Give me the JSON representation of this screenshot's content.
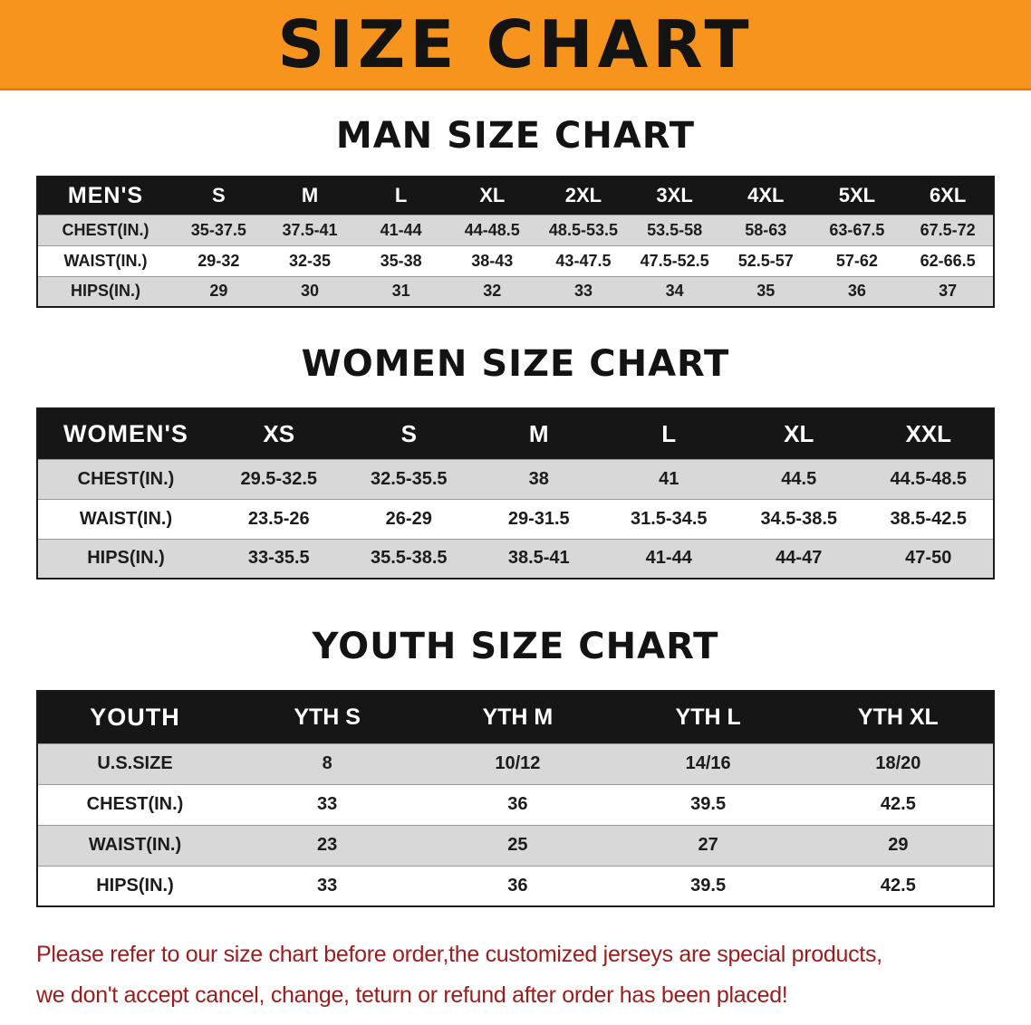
{
  "banner": {
    "title": "SIZE CHART"
  },
  "sections": [
    {
      "id": "men",
      "heading": "MAN SIZE CHART",
      "table": {
        "header": [
          "MEN'S",
          "S",
          "M",
          "L",
          "XL",
          "2XL",
          "3XL",
          "4XL",
          "5XL",
          "6XL"
        ],
        "rows": [
          [
            "CHEST(IN.)",
            "35-37.5",
            "37.5-41",
            "41-44",
            "44-48.5",
            "48.5-53.5",
            "53.5-58",
            "58-63",
            "63-67.5",
            "67.5-72"
          ],
          [
            "WAIST(IN.)",
            "29-32",
            "32-35",
            "35-38",
            "38-43",
            "43-47.5",
            "47.5-52.5",
            "52.5-57",
            "57-62",
            "62-66.5"
          ],
          [
            "HIPS(IN.)",
            "29",
            "30",
            "31",
            "32",
            "33",
            "34",
            "35",
            "36",
            "37"
          ]
        ]
      }
    },
    {
      "id": "women",
      "heading": "WOMEN SIZE CHART",
      "table": {
        "header": [
          "WOMEN'S",
          "XS",
          "S",
          "M",
          "L",
          "XL",
          "XXL"
        ],
        "rows": [
          [
            "CHEST(IN.)",
            "29.5-32.5",
            "32.5-35.5",
            "38",
            "41",
            "44.5",
            "44.5-48.5"
          ],
          [
            "WAIST(IN.)",
            "23.5-26",
            "26-29",
            "29-31.5",
            "31.5-34.5",
            "34.5-38.5",
            "38.5-42.5"
          ],
          [
            "HIPS(IN.)",
            "33-35.5",
            "35.5-38.5",
            "38.5-41",
            "41-44",
            "44-47",
            "47-50"
          ]
        ]
      }
    },
    {
      "id": "youth",
      "heading": "YOUTH SIZE CHART",
      "table": {
        "header": [
          "YOUTH",
          "YTH S",
          "YTH M",
          "YTH L",
          "YTH XL"
        ],
        "rows": [
          [
            "U.S.SIZE",
            "8",
            "10/12",
            "14/16",
            "18/20"
          ],
          [
            "CHEST(IN.)",
            "33",
            "36",
            "39.5",
            "42.5"
          ],
          [
            "WAIST(IN.)",
            "23",
            "25",
            "27",
            "29"
          ],
          [
            "HIPS(IN.)",
            "33",
            "36",
            "39.5",
            "42.5"
          ]
        ]
      }
    }
  ],
  "footer": {
    "line1": "Please refer to our size chart before order,the customized jerseys are special products,",
    "line2": "we don't accept cancel, change, teturn or refund after order has been placed!"
  },
  "colors": {
    "banner_orange": "#F7941E",
    "header_black": "#161616",
    "row_gray": "#D8D8D8",
    "footer_red": "#9C1C1C"
  }
}
